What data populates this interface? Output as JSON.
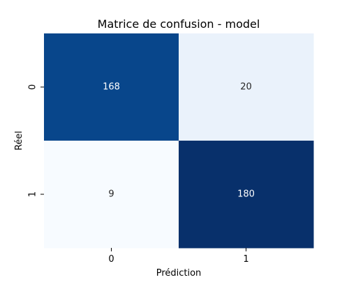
{
  "chart_data": {
    "type": "heatmap",
    "title": "Matrice de confusion - model",
    "xlabel": "Prédiction",
    "ylabel": "Réel",
    "x_categories": [
      "0",
      "1"
    ],
    "y_categories": [
      "0",
      "1"
    ],
    "values": [
      [
        168,
        20
      ],
      [
        9,
        180
      ]
    ],
    "colorscale": "Blues",
    "color_range": [
      9,
      180
    ],
    "cell_colors": [
      [
        "#08468b",
        "#eaf2fb"
      ],
      [
        "#f7fbff",
        "#08306b"
      ]
    ],
    "label_colors": [
      [
        "#ffffff",
        "#262626"
      ],
      [
        "#262626",
        "#ffffff"
      ]
    ],
    "colorbar": false,
    "annotations": true
  }
}
